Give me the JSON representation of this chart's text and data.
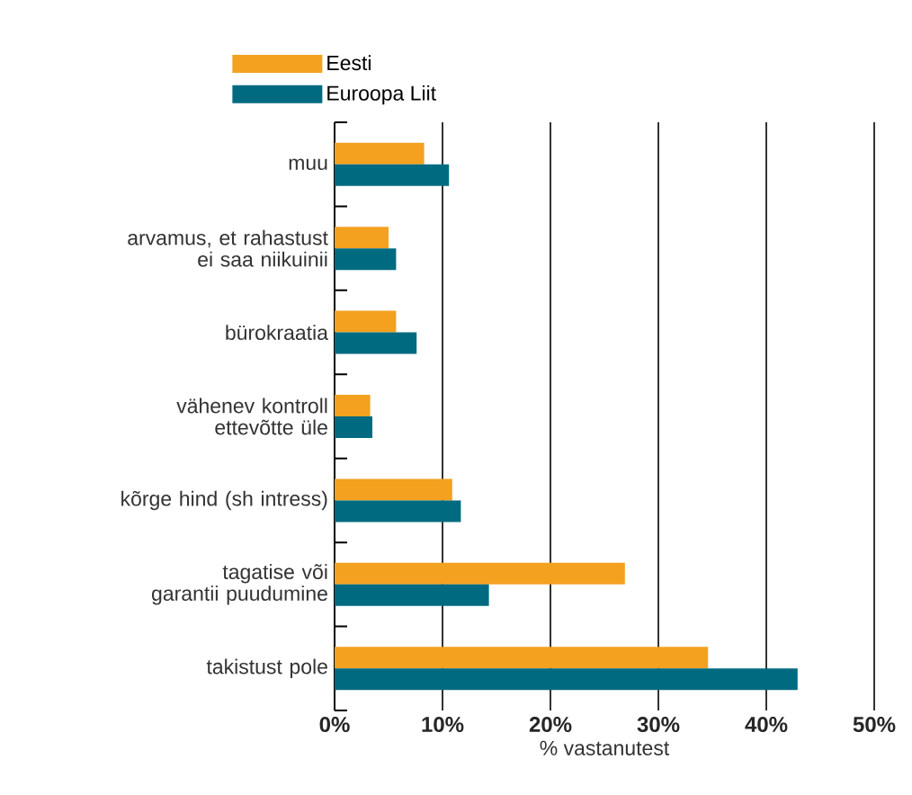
{
  "chart_data": {
    "type": "bar",
    "orientation": "horizontal",
    "categories": [
      "muu",
      "arvamus, et rahastust ei saa niikuinii",
      "bürokraatia",
      "vähenev kontroll ettevõtte üle",
      "kõrge hind (sh intress)",
      "tagatise või garantii puudumine",
      "takistust pole"
    ],
    "series": [
      {
        "name": "Eesti",
        "color": "#f4a11f",
        "values": [
          8.3,
          5.0,
          5.7,
          3.3,
          10.9,
          26.9,
          34.6
        ]
      },
      {
        "name": "Euroopa Liit",
        "color": "#006b80",
        "values": [
          10.6,
          5.7,
          7.6,
          3.5,
          11.7,
          14.3,
          42.9
        ]
      }
    ],
    "xlim": [
      0,
      50
    ],
    "xticks": [
      {
        "value": 0,
        "label": "0%"
      },
      {
        "value": 10,
        "label": "10%"
      },
      {
        "value": 20,
        "label": "20%"
      },
      {
        "value": 30,
        "label": "30%"
      },
      {
        "value": 40,
        "label": "40%"
      },
      {
        "value": 50,
        "label": "50%"
      }
    ],
    "xlabel": "% vastanutest",
    "grid": "x",
    "legend": "top left"
  }
}
